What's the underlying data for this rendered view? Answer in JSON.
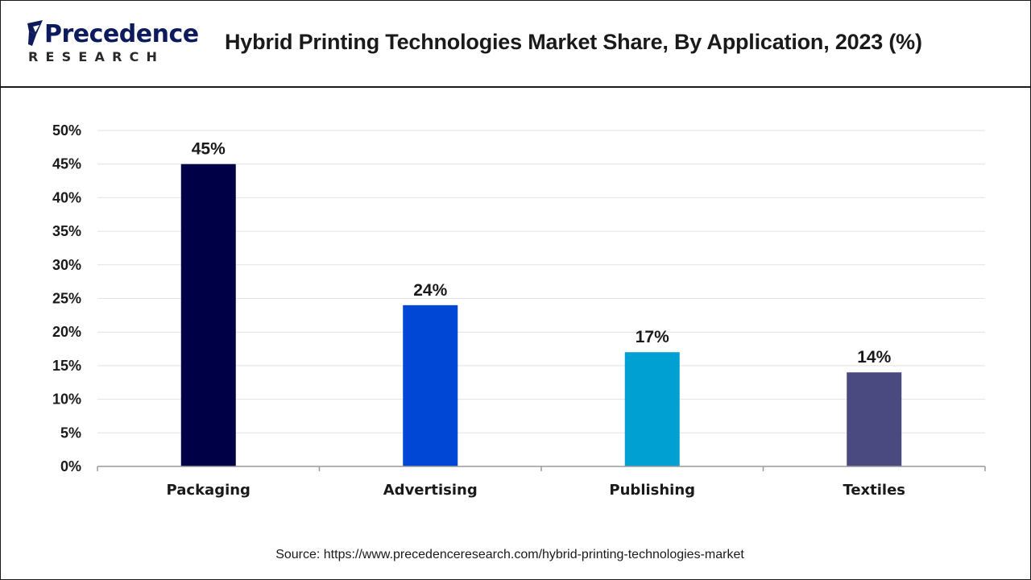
{
  "header": {
    "logo_word": "Precedence",
    "logo_sub": "RESEARCH",
    "title": "Hybrid Printing Technologies Market Share, By Application, 2023 (%)"
  },
  "footer": {
    "source": "Source: https://www.precedenceresearch.com/hybrid-printing-technologies-market"
  },
  "colors": {
    "brand": "#0d1a5c"
  },
  "chart_data": {
    "type": "bar",
    "title": "Hybrid Printing Technologies Market Share, By Application, 2023 (%)",
    "xlabel": "",
    "ylabel": "",
    "categories": [
      "Packaging",
      "Advertising",
      "Publishing",
      "Textiles"
    ],
    "values": [
      45,
      24,
      17,
      14
    ],
    "data_labels": [
      "45%",
      "24%",
      "17%",
      "14%"
    ],
    "bar_colors": [
      "#000046",
      "#0047d6",
      "#00a0d2",
      "#4a4a80"
    ],
    "ylim": [
      0,
      50
    ],
    "yticks": [
      0,
      5,
      10,
      15,
      20,
      25,
      30,
      35,
      40,
      45,
      50
    ],
    "ytick_labels": [
      "0%",
      "5%",
      "10%",
      "15%",
      "20%",
      "25%",
      "30%",
      "35%",
      "40%",
      "45%",
      "50%"
    ],
    "grid": true,
    "legend": "none"
  }
}
